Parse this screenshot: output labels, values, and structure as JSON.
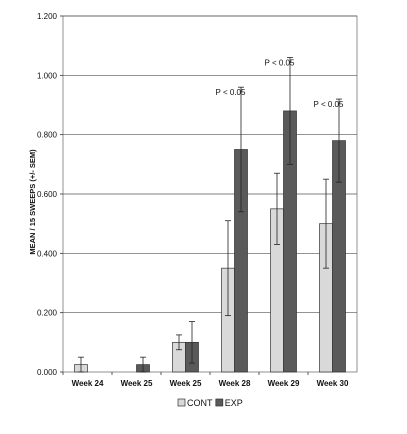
{
  "chart_data": {
    "type": "bar",
    "title": "",
    "xlabel": "",
    "ylabel": "MEAN / 15 SWEEPS (+/- SEM)",
    "ylim": [
      0,
      1.2
    ],
    "yticks": [
      "0.000",
      "0.200",
      "0.400",
      "0.600",
      "0.800",
      "1.000",
      "1.200"
    ],
    "categories": [
      "Week 24",
      "Week 25",
      "Week 25",
      "Week 28",
      "Week 29",
      "Week 30"
    ],
    "series": [
      {
        "name": "CONT",
        "color": "#d9d9d9",
        "values": [
          0.025,
          0.0,
          0.1,
          0.35,
          0.55,
          0.5
        ],
        "errors": [
          0.025,
          0.0,
          0.025,
          0.16,
          0.12,
          0.15
        ]
      },
      {
        "name": "EXP",
        "color": "#5a5a5a",
        "values": [
          0.0,
          0.025,
          0.1,
          0.75,
          0.88,
          0.78
        ],
        "errors": [
          0.0,
          0.025,
          0.07,
          0.21,
          0.18,
          0.14
        ]
      }
    ],
    "annotations": [
      {
        "category": "Week 28",
        "text": "P < 0.05"
      },
      {
        "category": "Week 29",
        "text": "P < 0.05"
      },
      {
        "category": "Week 30",
        "text": "P < 0.05"
      }
    ],
    "grid": true,
    "legend": "bottom-center"
  }
}
